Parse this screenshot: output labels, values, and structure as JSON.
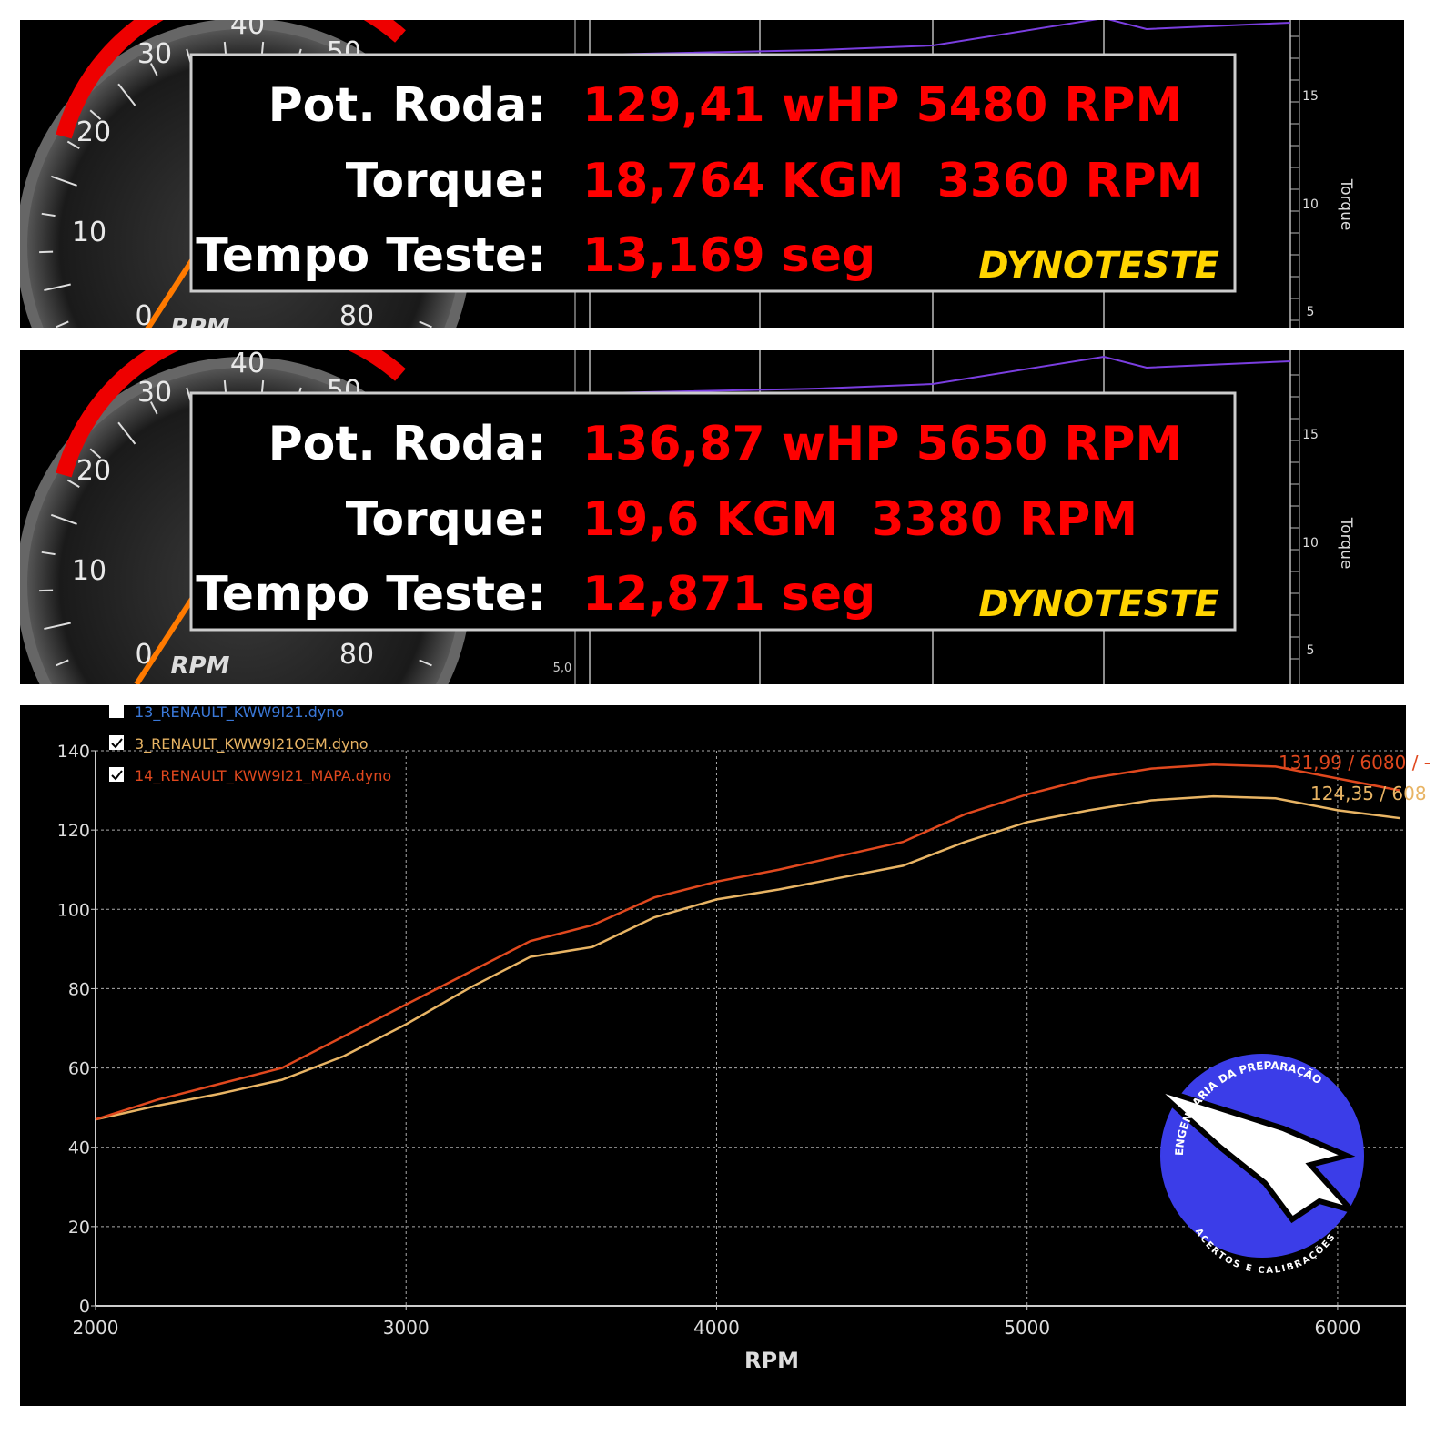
{
  "panels": [
    {
      "labels": [
        "Pot. Roda:",
        "Torque:",
        "Tempo Teste:"
      ],
      "values": [
        "129,41 wHP 5480 RPM",
        "18,764 KGM  3360 RPM",
        "13,169 seg"
      ],
      "brand": "DYNOTESTE",
      "gauge_labels": [
        "30",
        "40",
        "50",
        "20",
        "10",
        "0",
        "80"
      ],
      "gauge_unit": "RPM",
      "axis_title": "Torque",
      "axis_ticks": [
        "15",
        "10",
        "5"
      ]
    },
    {
      "labels": [
        "Pot. Roda:",
        "Torque:",
        "Tempo Teste:"
      ],
      "values": [
        "136,87 wHP 5650 RPM",
        "19,6 KGM  3380 RPM",
        "12,871 seg"
      ],
      "brand": "DYNOTESTE",
      "gauge_labels": [
        "30",
        "40",
        "50",
        "20",
        "10",
        "0",
        "80"
      ],
      "gauge_unit": "RPM",
      "axis_title": "Torque",
      "axis_ticks": [
        "15",
        "10",
        "5"
      ],
      "scale_label": "5,0"
    }
  ],
  "chart_data": {
    "type": "line",
    "x": [
      2000,
      2200,
      2400,
      2600,
      2800,
      3000,
      3200,
      3400,
      3600,
      3800,
      4000,
      4200,
      4400,
      4600,
      4800,
      5000,
      5200,
      5400,
      5600,
      5800,
      6000,
      6200
    ],
    "series": [
      {
        "name": "13_RENAULT_KWW9I21.dyno",
        "color": "#3a78d8",
        "checked": false,
        "values": [
          null,
          null,
          null,
          null,
          null,
          null,
          null,
          null,
          null,
          null,
          null,
          null,
          null,
          null,
          null,
          null,
          null,
          null,
          null,
          null,
          null,
          null
        ]
      },
      {
        "name": "3_RENAULT_KWW9I21OEM.dyno",
        "color": "#e8b464",
        "checked": true,
        "values": [
          47,
          50.5,
          53.5,
          57,
          63,
          71,
          80,
          88,
          90.5,
          98,
          102.5,
          105,
          108,
          111,
          117,
          122,
          125,
          127.5,
          128.5,
          128,
          125,
          123
        ]
      },
      {
        "name": "14_RENAULT_KWW9I21_MAPA.dyno",
        "color": "#e0481e",
        "checked": true,
        "values": [
          47,
          52,
          56,
          60,
          68,
          76,
          84,
          92,
          96,
          103,
          107,
          110,
          113.5,
          117,
          124,
          129,
          133,
          135.5,
          136.5,
          136,
          133,
          130
        ]
      }
    ],
    "annotations": [
      {
        "text": "131,99 / 6080 / -",
        "color": "#e0481e"
      },
      {
        "text": "124,35 / 608",
        "color": "#e8b464"
      }
    ],
    "xlabel": "RPM",
    "xlim": [
      2000,
      6220
    ],
    "xticks": [
      2000,
      3000,
      4000,
      5000,
      6000
    ],
    "ylim": [
      0,
      140
    ],
    "yticks": [
      0,
      20,
      40,
      60,
      80,
      100,
      120,
      140
    ],
    "grid": true
  },
  "logo": {
    "top_text": "ENGENHARIA DA PREPARAÇÃO",
    "bottom_text": "ACERTOS E CALIBRAÇÕES"
  }
}
